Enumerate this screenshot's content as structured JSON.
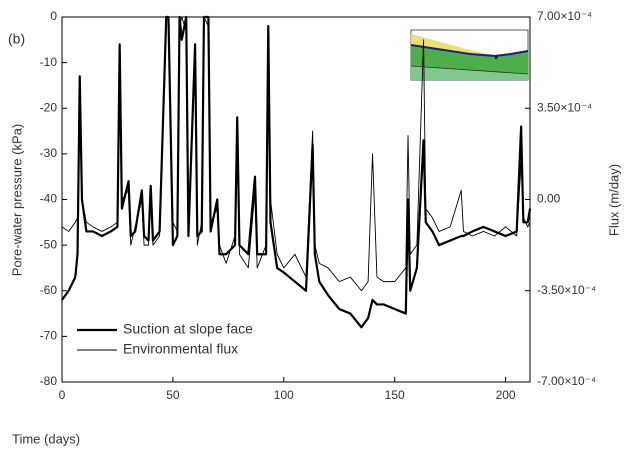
{
  "chart_data": {
    "type": "line",
    "annotation": "(b)",
    "xlabel": "Time (days)",
    "ylabel": "Pore-water pressure (kPa)",
    "y2label": "Flux (m/day)",
    "xlim": [
      0,
      211
    ],
    "xticks": [
      0,
      50,
      100,
      150,
      200
    ],
    "ylim": [
      -80,
      0
    ],
    "yticks": [
      -80,
      -70,
      -60,
      -50,
      -40,
      -30,
      -20,
      -10,
      0
    ],
    "y2lim": [
      -0.0007,
      0.0007
    ],
    "y2ticks": [
      {
        "value": -0.0007,
        "label": "-7.00×10⁻⁴"
      },
      {
        "value": -0.00035,
        "label": "-3.50×10⁻⁴"
      },
      {
        "value": 0,
        "label": "0.00"
      },
      {
        "value": 0.00035,
        "label": "3.50×10⁻⁴"
      },
      {
        "value": 0.0007,
        "label": "7.00×10⁻⁴"
      }
    ],
    "legend": "lower left",
    "x": [
      0,
      3,
      6,
      7,
      8,
      9,
      11,
      14,
      18,
      22,
      25,
      26,
      27,
      30,
      31,
      33,
      36,
      37,
      39,
      40,
      41,
      44,
      47,
      48,
      50,
      52,
      53,
      54,
      56,
      57,
      60,
      61,
      63,
      64,
      66,
      67,
      70,
      71,
      74,
      78,
      79,
      80,
      84,
      87,
      88,
      92,
      93,
      94,
      97,
      100,
      105,
      110,
      113,
      114,
      116,
      120,
      125,
      130,
      135,
      138,
      140,
      142,
      145,
      150,
      155,
      156,
      157,
      160,
      163,
      164,
      167,
      170,
      175,
      180,
      181,
      185,
      190,
      195,
      200,
      205,
      207,
      208,
      210,
      211
    ],
    "series": [
      {
        "name": "Suction at slope face",
        "color": "#000000",
        "width": 2.2,
        "values": [
          -62,
          -60,
          -57,
          -52,
          -13,
          -40,
          -47,
          -47,
          -48,
          -47,
          -46,
          -6,
          -42,
          -36,
          -48,
          -47,
          -38,
          -48,
          -49,
          -37,
          -49,
          -47,
          0,
          0,
          -50,
          -48,
          0,
          -5,
          0,
          -48,
          -6,
          -48,
          -47,
          0,
          0,
          -47,
          -40,
          -52,
          -52,
          -50,
          -22,
          -50,
          -52,
          -35,
          -52,
          -52,
          -2,
          -45,
          -55,
          -56,
          -58,
          -60,
          -28,
          -52,
          -58,
          -61,
          -64,
          -65,
          -68,
          -66,
          -62,
          -63,
          -63,
          -64,
          -65,
          -40,
          -60,
          -55,
          -27,
          -45,
          -47,
          -50,
          -49,
          -48,
          -48,
          -47,
          -46,
          -47,
          -48,
          -47,
          -24,
          -45,
          -45,
          -42
        ]
      },
      {
        "name": "Environmental flux",
        "color": "#000000",
        "width": 0.9,
        "axis": "y2",
        "values": [
          -0.000105,
          -0.0001225,
          -8.75e-05,
          -7e-05,
          0.00035,
          0,
          -8.75e-05,
          -0.000105,
          -0.0001225,
          -0.000105,
          -8.75e-05,
          0.00056,
          0,
          3.5e-05,
          -0.000175,
          -0.000105,
          0,
          -0.000175,
          -0.000175,
          3.5e-05,
          -0.000175,
          -0.00014,
          0.0007,
          0.0007,
          -8.75e-05,
          -0.0001225,
          0.000665,
          0.0007,
          0.0006475,
          -8.75e-05,
          0.000525,
          -0.000175,
          -8.75e-05,
          0.0007,
          0.000665,
          -8.75e-05,
          -3.5e-05,
          -0.000175,
          -0.000245,
          -0.00014,
          0.000245,
          -0.00021,
          -0.0002625,
          3.5e-05,
          -0.0002625,
          -0.000175,
          0.0006125,
          0,
          -0.00021,
          -0.0002625,
          -0.00021,
          -0.0002975,
          0.0002625,
          -0.000175,
          -0.000245,
          -0.0002625,
          -0.000315,
          -0.0002975,
          -0.00035,
          -0.000315,
          0.000175,
          -0.0002975,
          -0.000315,
          -0.000315,
          -0.0002625,
          0.000245,
          -0.00021,
          -0.000175,
          0.0006125,
          -3.5e-05,
          -7e-05,
          -0.0001225,
          -0.000105,
          3.5e-05,
          -0.0001225,
          -0.00014,
          -0.0001225,
          -0.00014,
          -0.000105,
          -0.00014,
          0.00014,
          -7e-05,
          -0.000105,
          -8.75e-05
        ]
      }
    ]
  }
}
